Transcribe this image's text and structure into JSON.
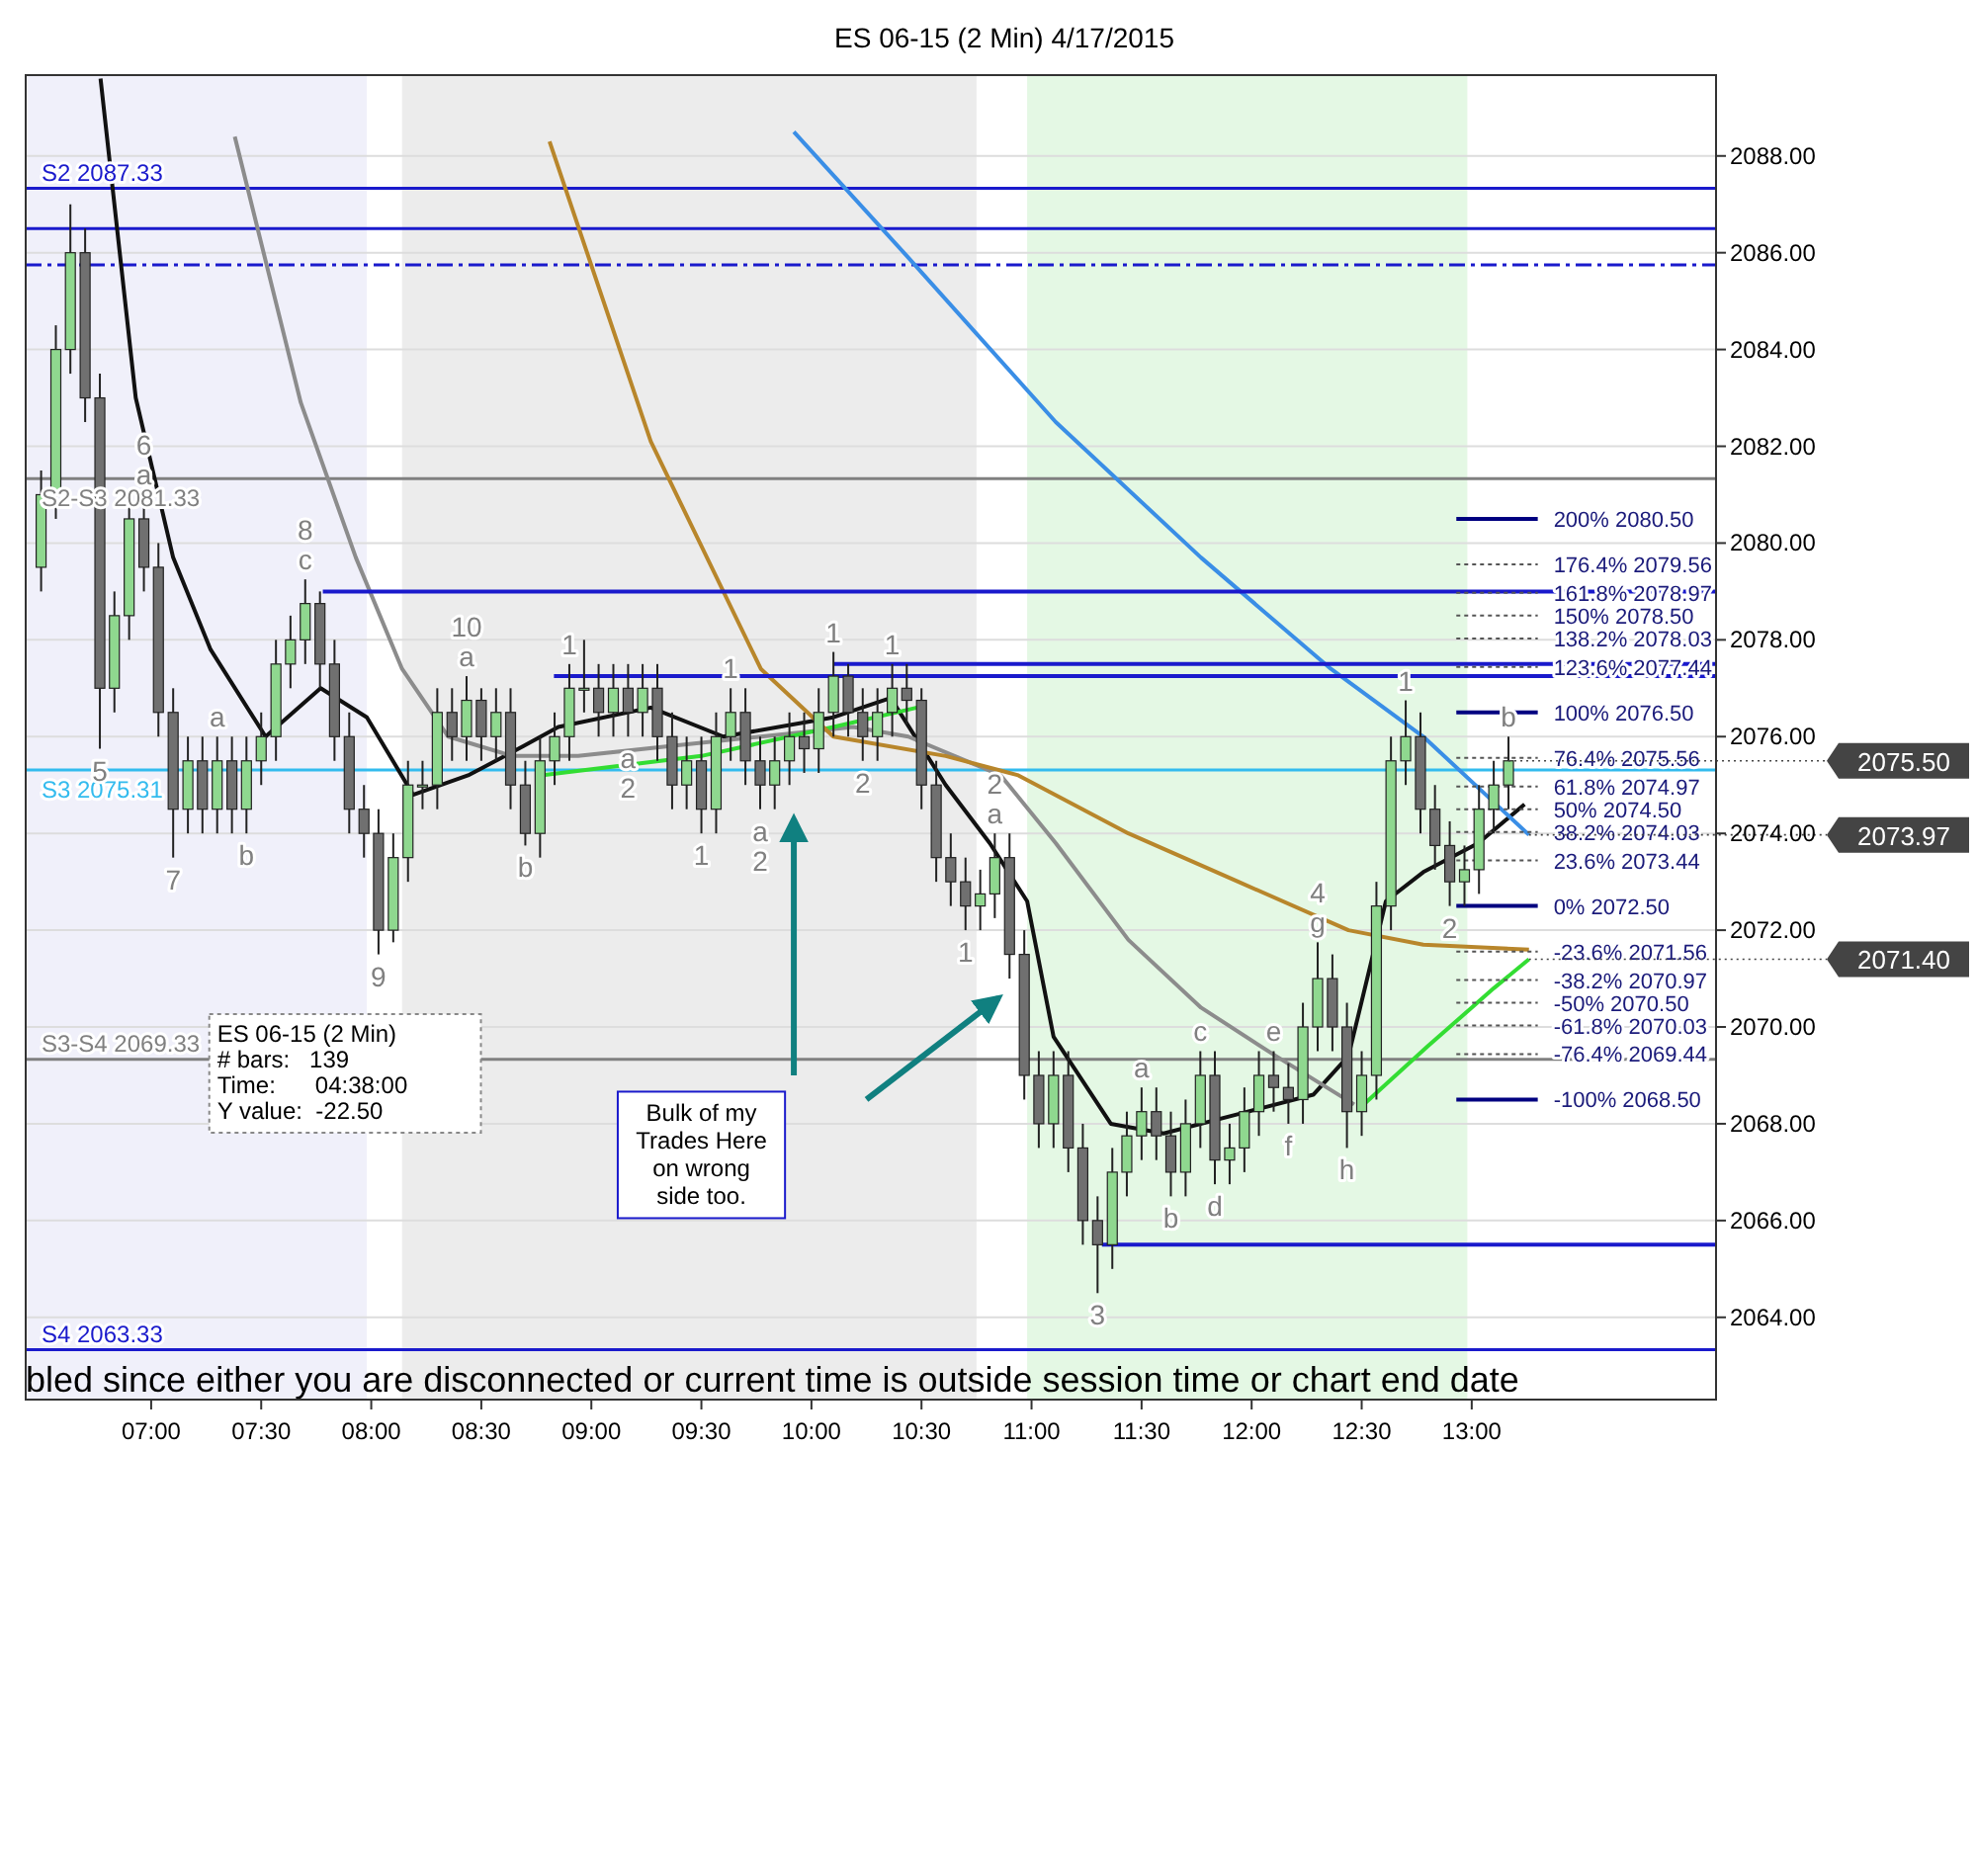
{
  "chart_data": {
    "type": "candlestick",
    "title": "ES 06-15 (2 Min)  4/17/2015",
    "xlim": [
      6.43,
      14.11
    ],
    "ylim": [
      2062.3,
      2089.67
    ],
    "xticks": [
      {
        "value": 7,
        "label": "07:00"
      },
      {
        "value": 7.5,
        "label": "07:30"
      },
      {
        "value": 8,
        "label": "08:00"
      },
      {
        "value": 8.5,
        "label": "08:30"
      },
      {
        "value": 9,
        "label": "09:00"
      },
      {
        "value": 9.5,
        "label": "09:30"
      },
      {
        "value": 10,
        "label": "10:00"
      },
      {
        "value": 10.5,
        "label": "10:30"
      },
      {
        "value": 11,
        "label": "11:00"
      },
      {
        "value": 11.5,
        "label": "11:30"
      },
      {
        "value": 12,
        "label": "12:00"
      },
      {
        "value": 12.5,
        "label": "12:30"
      },
      {
        "value": 13,
        "label": "13:00"
      }
    ],
    "yticks": [
      {
        "value": 2064,
        "label": "2064.00"
      },
      {
        "value": 2066,
        "label": "2066.00"
      },
      {
        "value": 2068,
        "label": "2068.00"
      },
      {
        "value": 2070,
        "label": "2070.00"
      },
      {
        "value": 2072,
        "label": "2072.00"
      },
      {
        "value": 2074,
        "label": "2074.00"
      },
      {
        "value": 2076,
        "label": "2076.00"
      },
      {
        "value": 2078,
        "label": "2078.00"
      },
      {
        "value": 2080,
        "label": "2080.00"
      },
      {
        "value": 2082,
        "label": "2082.00"
      },
      {
        "value": 2084,
        "label": "2084.00"
      },
      {
        "value": 2086,
        "label": "2086.00"
      },
      {
        "value": 2088,
        "label": "2088.00"
      }
    ],
    "grid": "y",
    "x": [
      6.5,
      6.567,
      6.633,
      6.7,
      6.767,
      6.833,
      6.9,
      6.967,
      7.033,
      7.1,
      7.167,
      7.233,
      7.3,
      7.367,
      7.433,
      7.5,
      7.567,
      7.633,
      7.7,
      7.767,
      7.833,
      7.9,
      7.967,
      8.033,
      8.1,
      8.167,
      8.233,
      8.3,
      8.367,
      8.433,
      8.5,
      8.567,
      8.633,
      8.7,
      8.767,
      8.833,
      8.9,
      8.967,
      9.033,
      9.1,
      9.167,
      9.233,
      9.3,
      9.367,
      9.433,
      9.5,
      9.567,
      9.633,
      9.7,
      9.767,
      9.833,
      9.9,
      9.967,
      10.033,
      10.1,
      10.167,
      10.233,
      10.3,
      10.367,
      10.433,
      10.5,
      10.567,
      10.633,
      10.7,
      10.767,
      10.833,
      10.9,
      10.967,
      11.033,
      11.1,
      11.167,
      11.233,
      11.3,
      11.367,
      11.433,
      11.5,
      11.567,
      11.633,
      11.7,
      11.767,
      11.833,
      11.9,
      11.967,
      12.033,
      12.1,
      12.167,
      12.233,
      12.3,
      12.367,
      12.433,
      12.5,
      12.567,
      12.633,
      12.7,
      12.767,
      12.833,
      12.9,
      12.967,
      13.033,
      13.1,
      13.167
    ],
    "ohlc": [
      [
        2079.5,
        2081.5,
        2079,
        2081
      ],
      [
        2081,
        2084.5,
        2080.5,
        2084
      ],
      [
        2084,
        2087,
        2083.5,
        2086
      ],
      [
        2086,
        2086.5,
        2082.5,
        2083
      ],
      [
        2083,
        2083.5,
        2075.75,
        2077
      ],
      [
        2077,
        2079,
        2076.5,
        2078.5
      ],
      [
        2078.5,
        2081,
        2078,
        2080.5
      ],
      [
        2080.5,
        2081,
        2079,
        2079.5
      ],
      [
        2079.5,
        2080,
        2076,
        2076.5
      ],
      [
        2076.5,
        2077,
        2073.5,
        2074.5
      ],
      [
        2074.5,
        2076,
        2074,
        2075.5
      ],
      [
        2075.5,
        2076,
        2074,
        2074.5
      ],
      [
        2074.5,
        2076,
        2074,
        2075.5
      ],
      [
        2075.5,
        2076,
        2074,
        2074.5
      ],
      [
        2074.5,
        2076,
        2074,
        2075.5
      ],
      [
        2075.5,
        2076.5,
        2075,
        2076
      ],
      [
        2076,
        2078,
        2075.5,
        2077.5
      ],
      [
        2077.5,
        2078.5,
        2077,
        2078
      ],
      [
        2078,
        2079.25,
        2077.5,
        2078.75
      ],
      [
        2078.75,
        2079,
        2077,
        2077.5
      ],
      [
        2077.5,
        2078,
        2075.5,
        2076
      ],
      [
        2076,
        2076.5,
        2074,
        2074.5
      ],
      [
        2074.5,
        2075,
        2073.5,
        2074
      ],
      [
        2074,
        2074.5,
        2071.5,
        2072
      ],
      [
        2072,
        2074,
        2071.75,
        2073.5
      ],
      [
        2073.5,
        2075.5,
        2073,
        2075
      ],
      [
        2075,
        2075.5,
        2074.5,
        2075
      ],
      [
        2075,
        2077,
        2074.5,
        2076.5
      ],
      [
        2076.5,
        2077,
        2075.5,
        2076
      ],
      [
        2076,
        2077.25,
        2075.5,
        2076.75
      ],
      [
        2076.75,
        2077,
        2075.5,
        2076
      ],
      [
        2076,
        2077,
        2075.5,
        2076.5
      ],
      [
        2076.5,
        2077,
        2074.5,
        2075
      ],
      [
        2075,
        2075.5,
        2073.75,
        2074
      ],
      [
        2074,
        2076,
        2073.5,
        2075.5
      ],
      [
        2075.5,
        2076.5,
        2075,
        2076
      ],
      [
        2076,
        2077.5,
        2075.5,
        2077
      ],
      [
        2077,
        2078,
        2076.5,
        2077
      ],
      [
        2077,
        2077.5,
        2076,
        2076.5
      ],
      [
        2076.5,
        2077.5,
        2076,
        2077
      ],
      [
        2077,
        2077.5,
        2076,
        2076.5
      ],
      [
        2076.5,
        2077.5,
        2076,
        2077
      ],
      [
        2077,
        2077.5,
        2075.5,
        2076
      ],
      [
        2076,
        2076.5,
        2074.5,
        2075
      ],
      [
        2075,
        2076,
        2074.5,
        2075.5
      ],
      [
        2075.5,
        2076,
        2074,
        2074.5
      ],
      [
        2074.5,
        2076.5,
        2074,
        2076
      ],
      [
        2076,
        2077,
        2075.5,
        2076.5
      ],
      [
        2076.5,
        2077,
        2075,
        2075.5
      ],
      [
        2075.5,
        2076,
        2074.5,
        2075
      ],
      [
        2075,
        2076,
        2074.5,
        2075.5
      ],
      [
        2075.5,
        2076.5,
        2075,
        2076
      ],
      [
        2076,
        2076.5,
        2075.25,
        2075.75
      ],
      [
        2075.75,
        2077,
        2075.25,
        2076.5
      ],
      [
        2076.5,
        2077.75,
        2076,
        2077.25
      ],
      [
        2077.25,
        2077.5,
        2076,
        2076.5
      ],
      [
        2076.5,
        2077,
        2075.5,
        2076
      ],
      [
        2076,
        2077,
        2075.5,
        2076.5
      ],
      [
        2076.5,
        2077.5,
        2076,
        2077
      ],
      [
        2077,
        2077.5,
        2076.25,
        2076.75
      ],
      [
        2076.75,
        2077,
        2074.5,
        2075
      ],
      [
        2075,
        2075.5,
        2073,
        2073.5
      ],
      [
        2073.5,
        2074,
        2072.5,
        2073
      ],
      [
        2073,
        2073.5,
        2072,
        2072.5
      ],
      [
        2072.5,
        2073.25,
        2072,
        2072.75
      ],
      [
        2072.75,
        2074,
        2072.25,
        2073.5
      ],
      [
        2073.5,
        2074,
        2071,
        2071.5
      ],
      [
        2071.5,
        2072,
        2068.5,
        2069
      ],
      [
        2069,
        2069.5,
        2067.5,
        2068
      ],
      [
        2068,
        2069.5,
        2067.5,
        2069
      ],
      [
        2069,
        2069.5,
        2067,
        2067.5
      ],
      [
        2067.5,
        2068,
        2065.5,
        2066
      ],
      [
        2066,
        2066.5,
        2064.5,
        2065.5
      ],
      [
        2065.5,
        2067.5,
        2065,
        2067
      ],
      [
        2067,
        2068.25,
        2066.5,
        2067.75
      ],
      [
        2067.75,
        2068.75,
        2067.25,
        2068.25
      ],
      [
        2068.25,
        2068.75,
        2067.25,
        2067.75
      ],
      [
        2067.75,
        2068.25,
        2066.5,
        2067
      ],
      [
        2067,
        2068.5,
        2066.5,
        2068
      ],
      [
        2068,
        2069.5,
        2067.5,
        2069
      ],
      [
        2069,
        2069.5,
        2066.75,
        2067.25
      ],
      [
        2067.25,
        2068,
        2066.75,
        2067.5
      ],
      [
        2067.5,
        2068.75,
        2067,
        2068.25
      ],
      [
        2068.25,
        2069.5,
        2067.75,
        2069
      ],
      [
        2069,
        2069.5,
        2068.25,
        2068.75
      ],
      [
        2068.75,
        2069.25,
        2068,
        2068.5
      ],
      [
        2068.5,
        2070.5,
        2068,
        2070
      ],
      [
        2070,
        2071.75,
        2069.5,
        2071
      ],
      [
        2071,
        2071.5,
        2069.5,
        2070
      ],
      [
        2070,
        2070.5,
        2067.5,
        2068.25
      ],
      [
        2068.25,
        2069.5,
        2067.75,
        2069
      ],
      [
        2069,
        2073,
        2068.5,
        2072.5
      ],
      [
        2072.5,
        2076,
        2072,
        2075.5
      ],
      [
        2075.5,
        2076.75,
        2075,
        2076
      ],
      [
        2076,
        2076.5,
        2074,
        2074.5
      ],
      [
        2074.5,
        2075,
        2073.25,
        2073.75
      ],
      [
        2073.75,
        2074.25,
        2072.5,
        2073
      ],
      [
        2073,
        2073.75,
        2072.5,
        2073.25
      ],
      [
        2073.25,
        2075,
        2072.75,
        2074.5
      ],
      [
        2074.5,
        2075.5,
        2074,
        2075
      ],
      [
        2075,
        2076,
        2074.5,
        2075.5
      ]
    ],
    "series": [
      {
        "type": "line",
        "color": "#111111",
        "x": [
          6.77,
          6.93,
          7.1,
          7.27,
          7.52,
          7.77,
          7.98,
          8.19,
          8.44,
          8.69,
          8.85,
          9.27,
          9.6,
          10.1,
          10.36,
          10.61,
          10.81,
          10.98,
          11.1,
          11.36,
          11.6,
          11.94,
          12.28,
          12.44,
          12.61,
          12.78,
          13.03,
          13.24
        ],
        "values": [
          2089.6,
          2083,
          2079.7,
          2077.8,
          2076,
          2077,
          2076.4,
          2074.8,
          2075.2,
          2075.8,
          2076.2,
          2076.6,
          2076,
          2076.4,
          2076.8,
          2075,
          2073.8,
          2072.6,
          2069.8,
          2068,
          2067.8,
          2068.2,
          2068.6,
          2069.4,
          2072.6,
          2073.2,
          2073.8,
          2074.6
        ]
      },
      {
        "type": "line",
        "color": "#8c8c8c",
        "x": [
          7.38,
          7.68,
          7.93,
          8.14,
          8.35,
          8.64,
          8.94,
          9.35,
          9.77,
          10.19,
          10.44,
          10.86,
          11.11,
          11.44,
          11.77,
          12.11,
          12.466
        ],
        "values": [
          2088.4,
          2082.9,
          2079.7,
          2077.4,
          2076,
          2075.6,
          2075.6,
          2075.8,
          2076,
          2076.2,
          2076,
          2075.2,
          2073.8,
          2071.8,
          2070.4,
          2069.4,
          2068.4
        ]
      },
      {
        "type": "line",
        "color": "#33dd33",
        "x": [
          8.77,
          9.5,
          10.1,
          10.48
        ],
        "values": [
          2075.2,
          2075.6,
          2076.2,
          2076.6
        ]
      },
      {
        "type": "line",
        "color": "#33dd33",
        "x": [
          12.51,
          12.8,
          13.1,
          13.26
        ],
        "values": [
          2068.4,
          2069.6,
          2070.8,
          2071.4
        ]
      },
      {
        "type": "line",
        "color": "#b8862b",
        "x": [
          8.81,
          9.27,
          9.77,
          10.1,
          10.61,
          10.94,
          11.44,
          11.94,
          12.44,
          12.78,
          13.26
        ],
        "values": [
          2088.3,
          2082.1,
          2077.4,
          2076,
          2075.6,
          2075.2,
          2074,
          2073,
          2072,
          2071.7,
          2071.6
        ]
      },
      {
        "type": "line",
        "color": "#3a8ee6",
        "x": [
          9.92,
          10.44,
          11.11,
          11.77,
          12.36,
          12.78,
          13.26
        ],
        "values": [
          2088.5,
          2085.9,
          2082.5,
          2079.7,
          2077.4,
          2076,
          2073.97
        ]
      },
      {
        "type": "line",
        "color": "#1a1acc",
        "x": [
          7.78,
          14.11
        ],
        "values": [
          2079,
          2079
        ]
      },
      {
        "type": "line",
        "color": "#1a1acc",
        "x": [
          10.1,
          14.11
        ],
        "values": [
          2077.5,
          2077.5
        ]
      },
      {
        "type": "line",
        "color": "#1a1acc",
        "x": [
          8.83,
          14.11
        ],
        "values": [
          2077.25,
          2077.25
        ]
      },
      {
        "type": "line",
        "color": "#1a1acc",
        "x": [
          11.32,
          14.11
        ],
        "values": [
          2065.5,
          2065.5
        ]
      },
      {
        "type": "line",
        "color": "#000080",
        "x": [
          12.93,
          13.3
        ],
        "values": [
          2080.5,
          2080.5
        ]
      },
      {
        "type": "line",
        "color": "#000080",
        "x": [
          12.93,
          13.3
        ],
        "values": [
          2076.5,
          2076.5
        ]
      },
      {
        "type": "line",
        "color": "#000080",
        "x": [
          12.93,
          13.3
        ],
        "values": [
          2072.5,
          2072.5
        ]
      },
      {
        "type": "line",
        "color": "#000080",
        "x": [
          12.93,
          13.3
        ],
        "values": [
          2068.5,
          2068.5
        ]
      },
      {
        "type": "line",
        "color": "#555555",
        "line_style": "dotted",
        "x": [
          12.93,
          13.3
        ],
        "values": [
          2079.56,
          2079.56
        ]
      },
      {
        "type": "line",
        "color": "#555555",
        "line_style": "dotted",
        "x": [
          12.93,
          13.3
        ],
        "values": [
          2078.97,
          2078.97
        ]
      },
      {
        "type": "line",
        "color": "#555555",
        "line_style": "dotted",
        "x": [
          12.93,
          13.3
        ],
        "values": [
          2078.5,
          2078.5
        ]
      },
      {
        "type": "line",
        "color": "#555555",
        "line_style": "dotted",
        "x": [
          12.93,
          13.3
        ],
        "values": [
          2078.03,
          2078.03
        ]
      },
      {
        "type": "line",
        "color": "#555555",
        "line_style": "dotted",
        "x": [
          12.93,
          13.3
        ],
        "values": [
          2077.44,
          2077.44
        ]
      },
      {
        "type": "line",
        "color": "#555555",
        "line_style": "dotted",
        "x": [
          12.93,
          13.3
        ],
        "values": [
          2075.56,
          2075.56
        ]
      },
      {
        "type": "line",
        "color": "#555555",
        "line_style": "dotted",
        "x": [
          12.93,
          13.3
        ],
        "values": [
          2074.97,
          2074.97
        ]
      },
      {
        "type": "line",
        "color": "#555555",
        "line_style": "dotted",
        "x": [
          12.93,
          13.3
        ],
        "values": [
          2074.5,
          2074.5
        ]
      },
      {
        "type": "line",
        "color": "#555555",
        "line_style": "dotted",
        "x": [
          12.93,
          13.3
        ],
        "values": [
          2074.03,
          2074.03
        ]
      },
      {
        "type": "line",
        "color": "#555555",
        "line_style": "dotted",
        "x": [
          12.93,
          13.3
        ],
        "values": [
          2073.44,
          2073.44
        ]
      },
      {
        "type": "line",
        "color": "#555555",
        "line_style": "dotted",
        "x": [
          12.93,
          13.3
        ],
        "values": [
          2071.56,
          2071.56
        ]
      },
      {
        "type": "line",
        "color": "#555555",
        "line_style": "dotted",
        "x": [
          12.93,
          13.3
        ],
        "values": [
          2070.97,
          2070.97
        ]
      },
      {
        "type": "line",
        "color": "#555555",
        "line_style": "dotted",
        "x": [
          12.93,
          13.3
        ],
        "values": [
          2070.5,
          2070.5
        ]
      },
      {
        "type": "line",
        "color": "#555555",
        "line_style": "dotted",
        "x": [
          12.93,
          13.3
        ],
        "values": [
          2070.03,
          2070.03
        ]
      },
      {
        "type": "line",
        "color": "#555555",
        "line_style": "dotted",
        "x": [
          12.93,
          13.3
        ],
        "values": [
          2069.44,
          2069.44
        ]
      }
    ],
    "ref_lines": [
      {
        "axis": "y",
        "value": 2087.33,
        "label": "S2 2087.33",
        "color": "#1a1acc"
      },
      {
        "axis": "y",
        "value": 2086.5,
        "color": "#1a1acc"
      },
      {
        "axis": "y",
        "value": 2085.75,
        "color": "#1a1acc",
        "line_style": "dashed"
      },
      {
        "axis": "y",
        "value": 2081.33,
        "label": "S2-S3 2081.33",
        "color": "#808080"
      },
      {
        "axis": "y",
        "value": 2075.31,
        "label": "S3 2075.31",
        "color": "#33bbee"
      },
      {
        "axis": "y",
        "value": 2069.33,
        "label": "S3-S4 2069.33",
        "color": "#808080"
      },
      {
        "axis": "y",
        "value": 2063.33,
        "label": "S4 2063.33",
        "color": "#1a1acc"
      }
    ],
    "bands": [
      {
        "axis": "x",
        "from": 6.43,
        "to": 7.98,
        "color": "#f0f0fa"
      },
      {
        "axis": "x",
        "from": 8.14,
        "to": 10.75,
        "color": "#ececec"
      },
      {
        "axis": "x",
        "from": 10.98,
        "to": 12.98,
        "color": "#e4f8e4"
      }
    ],
    "annotations": [
      "ES 06-15 (2 Min)\n# bars:   139\nTime:      04:38:00\nY value:  -22.50",
      "Bulk of my\nTrades Here\non wrong\nside too.",
      "bled since either you are disconnected or current time is outside session time or chart end date",
      {
        "text": "5",
        "x": 6.767,
        "y": 2075.75
      },
      {
        "text": "a",
        "x": 6.967,
        "y": 2081
      },
      {
        "text": "6",
        "x": 6.967,
        "y": 2081
      },
      {
        "text": "a",
        "x": 7.3,
        "y": 2076
      },
      {
        "text": "7",
        "x": 7.1,
        "y": 2073.5
      },
      {
        "text": "b",
        "x": 7.433,
        "y": 2074
      },
      {
        "text": "c",
        "x": 7.7,
        "y": 2079.25
      },
      {
        "text": "8",
        "x": 7.7,
        "y": 2079.25
      },
      {
        "text": "9",
        "x": 8.033,
        "y": 2071.5
      },
      {
        "text": "a",
        "x": 8.433,
        "y": 2077.25
      },
      {
        "text": "10",
        "x": 8.433,
        "y": 2077.25
      },
      {
        "text": "b",
        "x": 8.7,
        "y": 2073.75
      },
      {
        "text": "1",
        "x": 8.9,
        "y": 2077.5
      },
      {
        "text": "a",
        "x": 9.167,
        "y": 2076
      },
      {
        "text": "2",
        "x": 9.167,
        "y": 2076
      },
      {
        "text": "1",
        "x": 9.5,
        "y": 2074
      },
      {
        "text": "1",
        "x": 9.633,
        "y": 2077
      },
      {
        "text": "a",
        "x": 9.767,
        "y": 2074.5
      },
      {
        "text": "2",
        "x": 9.767,
        "y": 2074.5
      },
      {
        "text": "1",
        "x": 10.1,
        "y": 2077.75
      },
      {
        "text": "1",
        "x": 10.367,
        "y": 2077.5
      },
      {
        "text": "2",
        "x": 10.233,
        "y": 2075.5
      },
      {
        "text": "a",
        "x": 10.833,
        "y": 2074
      },
      {
        "text": "2",
        "x": 10.833,
        "y": 2074
      },
      {
        "text": "1",
        "x": 10.7,
        "y": 2072
      },
      {
        "text": "3",
        "x": 11.3,
        "y": 2064.5
      },
      {
        "text": "a",
        "x": 11.5,
        "y": 2068.75
      },
      {
        "text": "b",
        "x": 11.633,
        "y": 2066.5
      },
      {
        "text": "c",
        "x": 11.767,
        "y": 2069.5
      },
      {
        "text": "d",
        "x": 11.833,
        "y": 2066.75
      },
      {
        "text": "e",
        "x": 12.1,
        "y": 2069.5
      },
      {
        "text": "f",
        "x": 12.167,
        "y": 2068
      },
      {
        "text": "g",
        "x": 12.3,
        "y": 2071.75
      },
      {
        "text": "4",
        "x": 12.3,
        "y": 2071.75
      },
      {
        "text": "h",
        "x": 12.433,
        "y": 2067.5
      },
      {
        "text": "1",
        "x": 12.7,
        "y": 2076.75
      },
      {
        "text": "2",
        "x": 12.9,
        "y": 2072.5
      },
      {
        "text": "b",
        "x": 13.167,
        "y": 2076
      },
      {
        "text": "200%  2080.50",
        "x": 13.3,
        "y": 2080.5
      },
      {
        "text": "176.4%  2079.56",
        "x": 13.3,
        "y": 2079.56
      },
      {
        "text": "161.8%  2078.97",
        "x": 13.3,
        "y": 2078.97
      },
      {
        "text": "150%  2078.50",
        "x": 13.3,
        "y": 2078.5
      },
      {
        "text": "138.2%  2078.03",
        "x": 13.3,
        "y": 2078.03
      },
      {
        "text": "123.6%  2077.44",
        "x": 13.3,
        "y": 2077.44
      },
      {
        "text": "100%  2076.50",
        "x": 13.3,
        "y": 2076.5
      },
      {
        "text": "76.4%  2075.56",
        "x": 13.3,
        "y": 2075.56
      },
      {
        "text": "61.8%  2074.97",
        "x": 13.3,
        "y": 2074.97
      },
      {
        "text": "50%  2074.50",
        "x": 13.3,
        "y": 2074.5
      },
      {
        "text": "38.2%  2074.03",
        "x": 13.3,
        "y": 2074.03
      },
      {
        "text": "23.6%  2073.44",
        "x": 13.3,
        "y": 2073.44
      },
      {
        "text": "0%  2072.50",
        "x": 13.3,
        "y": 2072.5
      },
      {
        "text": "-23.6%  2071.56",
        "x": 13.3,
        "y": 2071.56
      },
      {
        "text": "-38.2%  2070.97",
        "x": 13.3,
        "y": 2070.97
      },
      {
        "text": "-50%  2070.50",
        "x": 13.3,
        "y": 2070.5
      },
      {
        "text": "-61.8%  2070.03",
        "x": 13.3,
        "y": 2070.03
      },
      {
        "text": "-76.4%  2069.44",
        "x": 13.3,
        "y": 2069.44
      },
      {
        "text": "-100%  2068.50",
        "x": 13.3,
        "y": 2068.5
      },
      {
        "text": "2075.50",
        "x": 13.167,
        "y": 2075.5
      },
      {
        "text": "2073.97",
        "x": 13.26,
        "y": 2073.97
      },
      {
        "text": "2071.40",
        "x": 13.26,
        "y": 2071.4
      }
    ]
  }
}
